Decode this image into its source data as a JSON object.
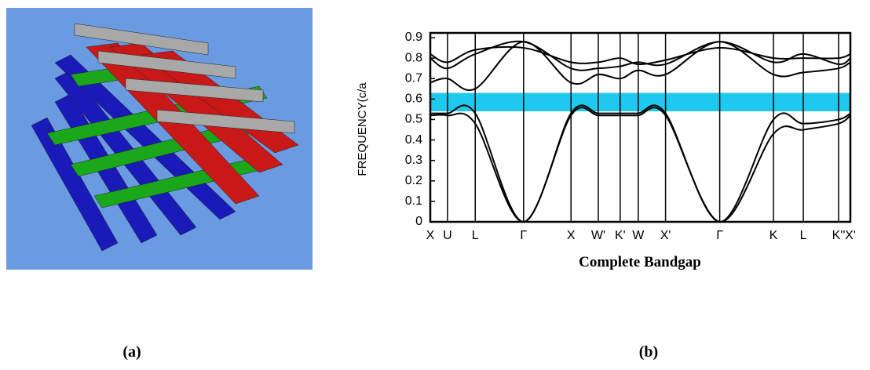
{
  "panels": {
    "a": "(a)",
    "b": "(b)"
  },
  "chart_data": {
    "type": "line",
    "ylabel": "FREQUENCY(c/a",
    "xlabel": "Complete Bandgap",
    "x": [
      0,
      4.1,
      10.7,
      22.2,
      33.5,
      40,
      45.2,
      49.5,
      56,
      68.9,
      81.7,
      88.8,
      97.2,
      100
    ],
    "xlim": [
      0,
      100
    ],
    "xticks": [
      {
        "value": 0,
        "label": "X"
      },
      {
        "value": 4.1,
        "label": "U"
      },
      {
        "value": 10.7,
        "label": "L"
      },
      {
        "value": 22.2,
        "label": "Γ"
      },
      {
        "value": 33.5,
        "label": "X"
      },
      {
        "value": 40,
        "label": "W'"
      },
      {
        "value": 45.2,
        "label": "K'"
      },
      {
        "value": 49.5,
        "label": "W"
      },
      {
        "value": 56,
        "label": "X'"
      },
      {
        "value": 68.9,
        "label": "Γ"
      },
      {
        "value": 81.7,
        "label": "K"
      },
      {
        "value": 88.8,
        "label": "L"
      },
      {
        "value": 97.2,
        "label": "K''"
      },
      {
        "value": 100,
        "label": "X'"
      }
    ],
    "ylim": [
      0,
      0.9
    ],
    "yticks": [
      0,
      0.1,
      0.2,
      0.3,
      0.4,
      0.5,
      0.6,
      0.7,
      0.8,
      0.9
    ],
    "bandgap": [
      0.54,
      0.63
    ],
    "bandgap_color": "#1ec8ee",
    "series": [
      {
        "color": "#000000",
        "values": [
          0.52,
          0.52,
          0.48,
          0,
          0.52,
          0.52,
          0.52,
          0.52,
          0.52,
          0,
          0.43,
          0.45,
          0.48,
          0.52
        ]
      },
      {
        "color": "#000000",
        "values": [
          0.53,
          0.53,
          0.53,
          0,
          0.53,
          0.53,
          0.53,
          0.53,
          0.53,
          0,
          0.5,
          0.48,
          0.5,
          0.53
        ]
      },
      {
        "color": "#000000",
        "values": [
          0.68,
          0.7,
          0.65,
          0.88,
          0.68,
          0.72,
          0.7,
          0.74,
          0.72,
          0.88,
          0.72,
          0.73,
          0.75,
          0.78
        ]
      },
      {
        "color": "#000000",
        "values": [
          0.8,
          0.75,
          0.82,
          0.88,
          0.75,
          0.75,
          0.76,
          0.78,
          0.77,
          0.88,
          0.78,
          0.82,
          0.77,
          0.8
        ]
      },
      {
        "color": "#000000",
        "values": [
          0.82,
          0.78,
          0.84,
          0.85,
          0.78,
          0.78,
          0.8,
          0.77,
          0.79,
          0.85,
          0.8,
          0.8,
          0.8,
          0.82
        ]
      }
    ]
  }
}
